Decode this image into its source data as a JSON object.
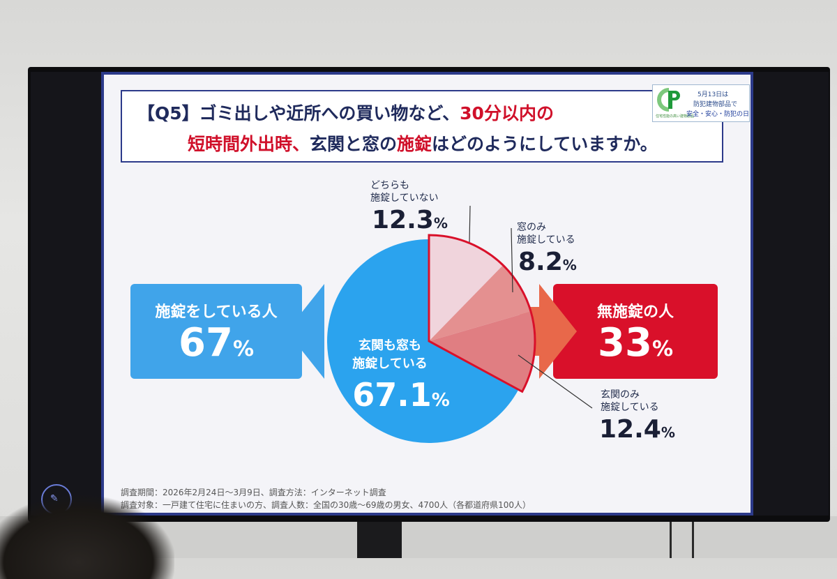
{
  "header": {
    "title_line1_a": "【Q5】ゴミ出しや近所への買い物など、",
    "title_line1_b": "30分以内の",
    "title_line2_a": "短時間外出時、",
    "title_line2_b": "玄関と窓の",
    "title_line2_c": "施錠",
    "title_line2_d": "はどのようにしていますか。"
  },
  "logo": {
    "small_text": "住宅性能の高い建物部品",
    "line1": "5月13日は",
    "line2": "防犯建物部品で",
    "line3": "安全・安心・防犯の日"
  },
  "summary": {
    "locked_label": "施錠をしている人",
    "locked_value": "67",
    "unlocked_label": "無施錠の人",
    "unlocked_value": "33",
    "pct": "%"
  },
  "labels": {
    "neither_1": "どちらも",
    "neither_2": "施錠していない",
    "neither_value": "12.3",
    "window_1": "窓のみ",
    "window_2": "施錠している",
    "window_value": "8.2",
    "door_1": "玄関のみ",
    "door_2": "施錠している",
    "door_value": "12.4",
    "both_1": "玄関も窓も",
    "both_2": "施錠している",
    "both_value": "67.1"
  },
  "footer": {
    "line1": "調査期間：2026年2月24日～3月9日、調査方法：インターネット調査",
    "line2": "調査対象：一戸建て住宅に住まいの方、調査人数：全国の30歳～69歳の男女、4700人（各都道府県100人）"
  },
  "chart_data": {
    "type": "pie",
    "title": "【Q5】ゴミ出しや近所への買い物など、30分以内の短時間外出時、玄関と窓の施錠はどのようにしていますか。",
    "unit": "%",
    "slices": [
      {
        "label": "玄関も窓も施錠している",
        "value": 67.1,
        "color": "#2ba3ee"
      },
      {
        "label": "どちらも施錠していない",
        "value": 12.3,
        "color": "#f0d4dc"
      },
      {
        "label": "窓のみ施錠している",
        "value": 8.2,
        "color": "#e49090"
      },
      {
        "label": "玄関のみ施錠している",
        "value": 12.4,
        "color": "#e07e82"
      }
    ],
    "groups": [
      {
        "label": "施錠をしている人",
        "value": 67
      },
      {
        "label": "無施錠の人",
        "value": 33
      }
    ]
  },
  "colors": {
    "frame": "#2c3a8a",
    "blue": "#40a4ea",
    "red": "#d9102a"
  }
}
